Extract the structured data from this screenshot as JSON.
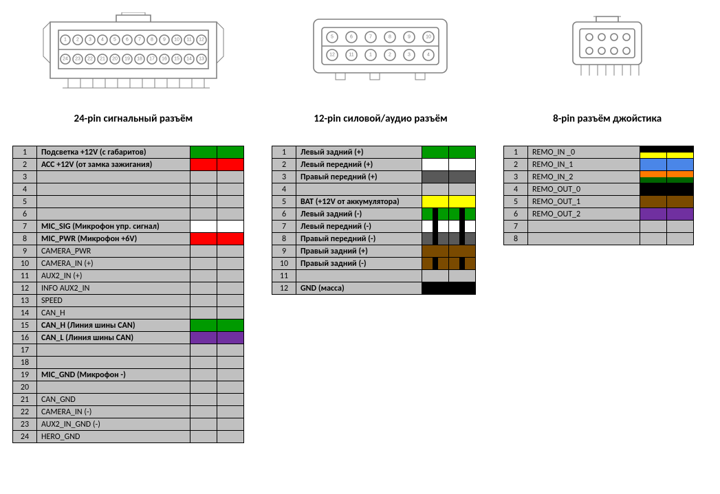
{
  "connectors": {
    "c24": {
      "title": "24-pin сигнальный разъём",
      "pins_top": [
        1,
        2,
        3,
        4,
        5,
        6,
        7,
        8,
        9,
        10,
        11,
        12
      ],
      "pins_bot": [
        24,
        23,
        22,
        21,
        20,
        19,
        18,
        17,
        16,
        15,
        14,
        13
      ]
    },
    "c12": {
      "title": "12-pin силовой/аудио разъём",
      "pins_top": [
        5,
        6,
        7,
        8,
        9,
        10
      ],
      "pins_bot": [
        12,
        11,
        1,
        2,
        3,
        4
      ]
    },
    "c8": {
      "title": "8-pin разъём джойстика"
    }
  },
  "colors": {
    "bg_cell": "#c0c0c0",
    "border": "#000000",
    "green": "#009a00",
    "red": "#ff0000",
    "white": "#ffffff",
    "purple": "#7030a0",
    "yellow": "#ffff00",
    "darkgrey": "#595959",
    "brown": "#7a4a00",
    "orange": "#ff7a00",
    "blue": "#4a86e8",
    "black": "#000000",
    "darkgreen": "#006400"
  },
  "table24": {
    "widths": {
      "num": 22,
      "desc": 210,
      "sw": 38
    },
    "rows": [
      {
        "n": "1",
        "d": "Подсветка +12V  (с габаритов)",
        "c1": "green",
        "c2": "green",
        "bold": true
      },
      {
        "n": "2",
        "d": "АСС +12V  (от замка зажигания)",
        "c1": "red",
        "c2": "red",
        "bold": true
      },
      {
        "n": "3",
        "d": ""
      },
      {
        "n": "4",
        "d": ""
      },
      {
        "n": "5",
        "d": ""
      },
      {
        "n": "6",
        "d": ""
      },
      {
        "n": "7",
        "d": "MIC_SIG (Микрофон упр. сигнал)",
        "c1": "white",
        "c2": "white",
        "bold": true
      },
      {
        "n": "8",
        "d": "MIC_PWR (Микрофон  +6V)",
        "c1": "red",
        "c2": "red",
        "bold": true
      },
      {
        "n": "9",
        "d": "CAMERA_PWR"
      },
      {
        "n": "10",
        "d": "CAMERA_IN (+)"
      },
      {
        "n": "11",
        "d": "AUX2_IN (+)"
      },
      {
        "n": "12",
        "d": "INFO AUX2_IN"
      },
      {
        "n": "13",
        "d": "SPEED"
      },
      {
        "n": "14",
        "d": "CAN_H"
      },
      {
        "n": "15",
        "d": "CAN_H (Линия шины CAN)",
        "c1": "green",
        "c2": "green",
        "bold": true
      },
      {
        "n": "16",
        "d": "CAN_L (Линия шины CAN)",
        "c1": "purple",
        "c2": "purple",
        "bold": true
      },
      {
        "n": "17",
        "d": ""
      },
      {
        "n": "18",
        "d": ""
      },
      {
        "n": "19",
        "d": "MIC_GND (Микрофон -)",
        "bold": true
      },
      {
        "n": "20",
        "d": ""
      },
      {
        "n": "21",
        "d": "CAN_GND"
      },
      {
        "n": "22",
        "d": "CAMERA_IN (-)"
      },
      {
        "n": "23",
        "d": "AUX2_IN_GND (-)"
      },
      {
        "n": "24",
        "d": "HERO_GND"
      }
    ]
  },
  "table12": {
    "widths": {
      "num": 22,
      "desc": 170,
      "sw": 38
    },
    "rows": [
      {
        "n": "1",
        "d": "Левый задний (+)",
        "c1": "green",
        "c2": "green",
        "bold": true
      },
      {
        "n": "2",
        "d": "Левый передний (+)",
        "c1": "white",
        "c2": "white",
        "bold": true
      },
      {
        "n": "3",
        "d": "Правый передний (+)",
        "c1": "darkgrey",
        "c2": "darkgrey",
        "bold": true
      },
      {
        "n": "4",
        "d": ""
      },
      {
        "n": "5",
        "d": "ВАТ (+12V от аккумулятора)",
        "c1": "yellow",
        "c2": "yellow",
        "bold": true
      },
      {
        "n": "6",
        "d": "Левый задний (-)",
        "pattern": "diagV",
        "pa": "green",
        "pb": "black",
        "bold": true
      },
      {
        "n": "7",
        "d": "Левый передний (-)",
        "pattern": "diagV",
        "pa": "white",
        "pb": "black",
        "bold": true
      },
      {
        "n": "8",
        "d": "Правый передний (-)",
        "pattern": "diagV",
        "pa": "darkgrey",
        "pb": "black",
        "bold": true
      },
      {
        "n": "9",
        "d": "Правый задний (+)",
        "c1": "brown",
        "c2": "brown",
        "bold": true
      },
      {
        "n": "10",
        "d": "Правый задний (-)",
        "pattern": "diagV",
        "pa": "brown",
        "pb": "black",
        "bold": true
      },
      {
        "n": "11",
        "d": ""
      },
      {
        "n": "12",
        "d": "GND (масса)",
        "c1": "black",
        "c2": "black",
        "bold": true
      }
    ]
  },
  "table8": {
    "widths": {
      "num": 22,
      "desc": 150,
      "sw": 38
    },
    "rows": [
      {
        "n": "1",
        "d": "REMO_IN _0",
        "pattern": "halfH",
        "pa": "black",
        "pb": "yellow"
      },
      {
        "n": "2",
        "d": "REMO_IN_1",
        "c1": "blue",
        "c2": "blue"
      },
      {
        "n": "3",
        "d": "REMO_IN_2",
        "pattern": "halfH",
        "pa": "orange",
        "pb": "darkgreen"
      },
      {
        "n": "4",
        "d": "REMO_OUT_0",
        "c1": "black",
        "c2": "black"
      },
      {
        "n": "5",
        "d": "REMO_OUT_1",
        "c1": "brown",
        "c2": "brown"
      },
      {
        "n": "6",
        "d": "REMO_OUT_2",
        "c1": "purple",
        "c2": "purple"
      },
      {
        "n": "7",
        "d": ""
      },
      {
        "n": "8",
        "d": ""
      }
    ]
  }
}
